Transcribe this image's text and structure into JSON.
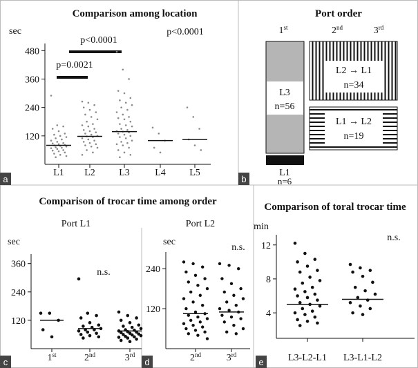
{
  "chart_data": [
    {
      "type": "strip",
      "panel_label": "a",
      "title": "Comparison among location",
      "ylabel": "sec",
      "color": "#8a8a8a",
      "categories": [
        "L1",
        "L2",
        "L3",
        "L4",
        "L5"
      ],
      "values": [
        [
          290,
          165,
          160,
          150,
          140,
          130,
          125,
          120,
          115,
          110,
          105,
          100,
          95,
          90,
          88,
          85,
          82,
          80,
          78,
          75,
          72,
          70,
          68,
          65,
          60,
          58,
          55,
          50,
          45,
          40,
          35,
          30
        ],
        [
          265,
          260,
          250,
          240,
          230,
          220,
          210,
          200,
          190,
          180,
          170,
          165,
          160,
          150,
          145,
          140,
          135,
          130,
          125,
          120,
          118,
          115,
          110,
          105,
          100,
          95,
          90,
          85,
          80,
          75,
          70,
          60,
          50,
          40
        ],
        [
          475,
          400,
          360,
          310,
          300,
          280,
          270,
          260,
          250,
          240,
          230,
          220,
          210,
          200,
          195,
          190,
          180,
          170,
          165,
          160,
          150,
          145,
          140,
          138,
          135,
          130,
          125,
          120,
          115,
          110,
          100,
          95,
          90,
          85,
          80,
          70,
          60,
          50,
          40,
          30
        ],
        [
          155,
          130,
          100,
          70,
          50
        ],
        [
          240,
          200,
          150,
          105,
          80,
          60
        ]
      ],
      "medians": [
        80,
        118,
        138,
        100,
        105
      ],
      "ylim": [
        0,
        510
      ],
      "yticks": [
        120,
        240,
        360,
        480
      ],
      "annotations": [
        "p=0.0021",
        "p<0.0001",
        "p<0.0001"
      ]
    },
    {
      "type": "strip",
      "panel_label": "c",
      "heading": "Comparison of trocar time among order",
      "title": "Port L1",
      "ylabel": "sec",
      "color": "#111",
      "categories": [
        [
          "1",
          "st"
        ],
        [
          "2",
          "nd"
        ],
        [
          "3",
          "rd"
        ]
      ],
      "values": [
        [
          150,
          150,
          120,
          80,
          50
        ],
        [
          295,
          150,
          140,
          130,
          110,
          100,
          95,
          90,
          85,
          80,
          80,
          75,
          70,
          65,
          60,
          55,
          50,
          45
        ],
        [
          155,
          140,
          130,
          120,
          110,
          100,
          95,
          90,
          85,
          80,
          78,
          75,
          72,
          70,
          68,
          65,
          62,
          60,
          58,
          55,
          52,
          50,
          48,
          45,
          40,
          35,
          30
        ]
      ],
      "medians": [
        120,
        85,
        75
      ],
      "ylim": [
        0,
        400
      ],
      "yticks": [
        120,
        240,
        360
      ],
      "annotations": [
        "n.s."
      ]
    },
    {
      "type": "strip",
      "panel_label": "d",
      "title": "Port L2",
      "ylabel": "sec",
      "color": "#111",
      "categories": [
        [
          "2",
          "nd"
        ],
        [
          "3",
          "rd"
        ]
      ],
      "values": [
        [
          260,
          255,
          245,
          230,
          220,
          210,
          200,
          190,
          180,
          170,
          160,
          150,
          140,
          130,
          120,
          110,
          105,
          100,
          95,
          90,
          85,
          80,
          75,
          70,
          65,
          60,
          55,
          50,
          45,
          40,
          30
        ],
        [
          255,
          250,
          240,
          210,
          195,
          180,
          170,
          160,
          150,
          140,
          130,
          120,
          115,
          110,
          100,
          95,
          90,
          80,
          70,
          60,
          50,
          45
        ]
      ],
      "medians": [
        105,
        110
      ],
      "ylim": [
        0,
        290
      ],
      "yticks": [
        120,
        240
      ],
      "annotations": [
        "n.s."
      ]
    },
    {
      "type": "strip",
      "panel_label": "e",
      "title": "Comparison of toral trocar time",
      "ylabel": "min",
      "color": "#111",
      "categories": [
        "L3-L2-L1",
        "L3-L1-L2"
      ],
      "values": [
        [
          12.2,
          11,
          10.3,
          10,
          9.5,
          9,
          8.8,
          8.2,
          7.8,
          7.5,
          7,
          6.8,
          6.5,
          6.2,
          6,
          5.8,
          5.5,
          5.2,
          5,
          4.8,
          4.5,
          4.2,
          4,
          3.8,
          3.5,
          3.2,
          3,
          2.8,
          2.5
        ],
        [
          9.7,
          9.3,
          9,
          8.8,
          8.3,
          7.6,
          7,
          6.6,
          6.2,
          5.8,
          5.5,
          5.2,
          4.8,
          4.5,
          4,
          3.8
        ]
      ],
      "medians": [
        5.0,
        5.6
      ],
      "ylim": [
        1,
        13.2
      ],
      "yticks": [
        4,
        8,
        12
      ],
      "annotations": [
        "n.s."
      ]
    }
  ],
  "diagram": {
    "panel_label": "b",
    "title": "Port order",
    "headers": [
      [
        "1",
        "st"
      ],
      [
        "2",
        "nd"
      ],
      [
        "3",
        "rd"
      ]
    ],
    "boxes": [
      {
        "lines": [
          "L3",
          "n=56"
        ]
      },
      {
        "lines": [
          "L2 → L1",
          "n=34"
        ]
      },
      {
        "lines": [
          "L1 → L2",
          "n=19"
        ]
      },
      {
        "lines": [
          "L1",
          "n=6"
        ]
      }
    ]
  }
}
